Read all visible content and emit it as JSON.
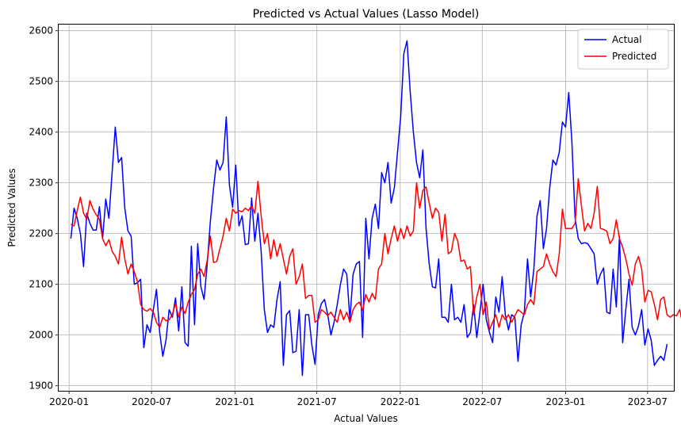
{
  "chart_data": {
    "type": "line",
    "title": "Predicted vs Actual Values (Lasso Model)",
    "xlabel": "Actual Values",
    "ylabel": "Predicted Values",
    "x_type": "date",
    "x_start": "2020-01-05",
    "x_step_days": 7,
    "xlim": [
      "2019-12-09",
      "2023-08-28"
    ],
    "ylim": [
      1890,
      2612
    ],
    "x_ticks": [
      "2020-01",
      "2020-07",
      "2021-01",
      "2021-07",
      "2022-01",
      "2022-07",
      "2023-01",
      "2023-07"
    ],
    "y_ticks": [
      1900,
      2000,
      2100,
      2200,
      2300,
      2400,
      2500,
      2600
    ],
    "grid": true,
    "legend_position": "top-right",
    "series": [
      {
        "name": "Actual",
        "color": "#0000ff",
        "values": [
          2190,
          2250,
          2230,
          2200,
          2135,
          2240,
          2220,
          2207,
          2207,
          2253,
          2190,
          2268,
          2230,
          2320,
          2410,
          2340,
          2350,
          2250,
          2205,
          2195,
          2100,
          2103,
          2110,
          1975,
          2020,
          2005,
          2050,
          2090,
          2005,
          1958,
          1990,
          2050,
          2035,
          2073,
          2008,
          2095,
          1985,
          1978,
          2175,
          2020,
          2180,
          2095,
          2070,
          2140,
          2225,
          2290,
          2345,
          2325,
          2340,
          2430,
          2295,
          2252,
          2335,
          2215,
          2235,
          2178,
          2180,
          2270,
          2185,
          2240,
          2165,
          2050,
          2005,
          2020,
          2015,
          2070,
          2105,
          1940,
          2040,
          2048,
          1965,
          1968,
          2050,
          1920,
          2040,
          2040,
          1980,
          1942,
          2040,
          2062,
          2070,
          2040,
          2000,
          2025,
          2060,
          2100,
          2130,
          2120,
          2030,
          2120,
          2140,
          2145,
          1995,
          2230,
          2150,
          2230,
          2258,
          2210,
          2320,
          2300,
          2340,
          2260,
          2290,
          2360,
          2430,
          2555,
          2580,
          2480,
          2400,
          2340,
          2310,
          2365,
          2210,
          2140,
          2095,
          2093,
          2150,
          2035,
          2035,
          2025,
          2100,
          2030,
          2035,
          2025,
          2060,
          1995,
          2005,
          2060,
          1995,
          2045,
          2100,
          2030,
          2005,
          1985,
          2075,
          2045,
          2115,
          2040,
          2010,
          2040,
          2035,
          1948,
          2020,
          2045,
          2150,
          2075,
          2130,
          2235,
          2265,
          2170,
          2210,
          2290,
          2345,
          2335,
          2360,
          2420,
          2410,
          2478,
          2380,
          2230,
          2190,
          2180,
          2182,
          2180,
          2170,
          2160,
          2100,
          2120,
          2132,
          2045,
          2042,
          2130,
          2055,
          2195,
          1985,
          2050,
          2110,
          2015,
          2000,
          2018,
          2050,
          1980,
          2012,
          1990,
          1940,
          1950,
          1958,
          1950,
          1982
        ]
      },
      {
        "name": "Predicted",
        "color": "#ff0000",
        "values": [
          2218,
          2215,
          2245,
          2272,
          2240,
          2228,
          2265,
          2248,
          2237,
          2228,
          2190,
          2176,
          2188,
          2165,
          2155,
          2140,
          2193,
          2150,
          2120,
          2140,
          2125,
          2105,
          2060,
          2050,
          2047,
          2052,
          2045,
          2025,
          2015,
          2035,
          2028,
          2030,
          2040,
          2062,
          2035,
          2055,
          2042,
          2065,
          2080,
          2090,
          2120,
          2130,
          2115,
          2148,
          2195,
          2143,
          2145,
          2170,
          2195,
          2230,
          2205,
          2248,
          2240,
          2245,
          2243,
          2250,
          2245,
          2255,
          2240,
          2303,
          2235,
          2180,
          2200,
          2150,
          2188,
          2155,
          2180,
          2150,
          2120,
          2155,
          2170,
          2100,
          2115,
          2140,
          2072,
          2078,
          2078,
          2025,
          2030,
          2050,
          2045,
          2038,
          2045,
          2035,
          2025,
          2050,
          2030,
          2045,
          2025,
          2050,
          2060,
          2065,
          2048,
          2080,
          2065,
          2082,
          2070,
          2130,
          2140,
          2200,
          2160,
          2190,
          2215,
          2185,
          2210,
          2190,
          2215,
          2195,
          2205,
          2300,
          2250,
          2285,
          2292,
          2260,
          2230,
          2250,
          2242,
          2185,
          2238,
          2160,
          2165,
          2200,
          2185,
          2145,
          2148,
          2130,
          2135,
          2040,
          2075,
          2100,
          2040,
          2065,
          2010,
          2025,
          2040,
          2015,
          2040,
          2030,
          2040,
          2025,
          2038,
          2050,
          2045,
          2040,
          2060,
          2070,
          2060,
          2125,
          2130,
          2135,
          2160,
          2140,
          2125,
          2115,
          2160,
          2248,
          2210,
          2210,
          2210,
          2220,
          2308,
          2255,
          2205,
          2220,
          2210,
          2240,
          2293,
          2210,
          2208,
          2205,
          2180,
          2190,
          2227,
          2190,
          2173,
          2150,
          2120,
          2098,
          2140,
          2155,
          2130,
          2065,
          2088,
          2085,
          2060,
          2030,
          2070,
          2075,
          2040,
          2035,
          2040,
          2038,
          2050,
          2018
        ]
      }
    ]
  }
}
